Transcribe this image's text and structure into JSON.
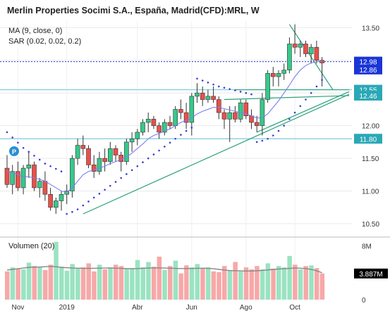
{
  "header": {
    "title": "Merlin Properties Socimi S.A., España, Madrid(CFD):MRL, W",
    "ma_label": "MA (9, close, 0)",
    "sar_label": "SAR (0.02, 0.02, 0.2)",
    "volume_label": "Volumen (20)",
    "badge": "P"
  },
  "colors": {
    "up": "#35c98a",
    "down": "#e8504b",
    "ma": "#7b7ff0",
    "sar": "#3b3bd6",
    "trend": "#2aa07a",
    "hline": "#7ec9dd",
    "vol_up": "#9ae3c1",
    "vol_down": "#f7a8a8",
    "vol_ma": "#888888",
    "price_blue": "#1a35d6",
    "price_teal": "#2aa8b6",
    "badge": "#2a8fd3"
  },
  "chart_data": {
    "type": "candlestick",
    "price_axis": {
      "ticks": [
        "13.50",
        "13.00",
        "12.50",
        "12.00",
        "11.50",
        "11.00",
        "10.50"
      ],
      "values": [
        13.5,
        13.0,
        12.5,
        12.0,
        11.5,
        11.0,
        10.5
      ],
      "ylim": [
        10.35,
        13.6
      ]
    },
    "price_labels": [
      {
        "text": "12.98",
        "value": 12.98,
        "style": "blue"
      },
      {
        "text": "12.86",
        "value": 12.86,
        "style": "blue"
      },
      {
        "text": "12.55",
        "value": 12.55,
        "style": "teal"
      },
      {
        "text": "12.46",
        "value": 12.46,
        "style": "teal"
      },
      {
        "text": "11.80",
        "value": 11.8,
        "style": "teal"
      }
    ],
    "x_axis": {
      "labels": [
        "Nov",
        "2019",
        "Abr",
        "Jun",
        "Ago",
        "Oct"
      ],
      "label_bars": [
        2,
        11,
        24,
        34,
        44,
        53
      ]
    },
    "candles": [
      [
        11.35,
        11.55,
        11.05,
        11.1
      ],
      [
        11.1,
        11.4,
        10.95,
        11.3
      ],
      [
        11.3,
        11.45,
        11.0,
        11.05
      ],
      [
        11.05,
        11.4,
        10.95,
        11.35
      ],
      [
        11.35,
        11.6,
        11.2,
        11.4
      ],
      [
        11.4,
        11.45,
        11.0,
        11.05
      ],
      [
        11.05,
        11.2,
        10.9,
        11.15
      ],
      [
        11.15,
        11.3,
        10.85,
        10.95
      ],
      [
        10.95,
        11.05,
        10.7,
        10.75
      ],
      [
        10.75,
        10.9,
        10.65,
        10.85
      ],
      [
        10.85,
        11.0,
        10.7,
        10.95
      ],
      [
        10.95,
        11.1,
        10.8,
        11.0
      ],
      [
        11.0,
        11.55,
        10.9,
        11.5
      ],
      [
        11.5,
        11.8,
        11.4,
        11.7
      ],
      [
        11.7,
        11.85,
        11.55,
        11.65
      ],
      [
        11.65,
        11.7,
        11.35,
        11.4
      ],
      [
        11.4,
        11.55,
        11.2,
        11.3
      ],
      [
        11.3,
        11.6,
        11.25,
        11.5
      ],
      [
        11.5,
        11.65,
        11.3,
        11.45
      ],
      [
        11.45,
        11.75,
        11.4,
        11.65
      ],
      [
        11.65,
        11.7,
        11.45,
        11.55
      ],
      [
        11.55,
        11.6,
        11.3,
        11.45
      ],
      [
        11.45,
        11.8,
        11.4,
        11.75
      ],
      [
        11.75,
        11.9,
        11.6,
        11.8
      ],
      [
        11.8,
        11.95,
        11.7,
        11.9
      ],
      [
        11.9,
        12.1,
        11.85,
        12.05
      ],
      [
        12.05,
        12.2,
        11.9,
        12.1
      ],
      [
        12.1,
        12.15,
        11.95,
        12.0
      ],
      [
        12.0,
        12.05,
        11.8,
        11.9
      ],
      [
        11.9,
        12.1,
        11.85,
        12.05
      ],
      [
        12.05,
        12.15,
        11.95,
        12.0
      ],
      [
        12.0,
        12.3,
        11.95,
        12.25
      ],
      [
        12.25,
        12.4,
        12.1,
        12.2
      ],
      [
        12.2,
        12.35,
        11.95,
        12.05
      ],
      [
        12.05,
        12.5,
        11.85,
        12.45
      ],
      [
        12.45,
        12.65,
        12.35,
        12.5
      ],
      [
        12.5,
        12.6,
        12.3,
        12.4
      ],
      [
        12.4,
        12.55,
        12.35,
        12.45
      ],
      [
        12.45,
        12.6,
        12.35,
        12.4
      ],
      [
        12.4,
        12.45,
        12.1,
        12.2
      ],
      [
        12.2,
        12.25,
        11.95,
        12.1
      ],
      [
        12.1,
        12.3,
        11.75,
        12.2
      ],
      [
        12.2,
        12.3,
        12.05,
        12.1
      ],
      [
        12.1,
        12.4,
        12.05,
        12.35
      ],
      [
        12.35,
        12.4,
        12.1,
        12.15
      ],
      [
        12.15,
        12.25,
        11.95,
        12.05
      ],
      [
        12.05,
        12.15,
        11.9,
        12.0
      ],
      [
        12.0,
        12.5,
        11.85,
        12.4
      ],
      [
        12.4,
        12.85,
        12.35,
        12.8
      ],
      [
        12.8,
        12.9,
        12.6,
        12.75
      ],
      [
        12.75,
        12.85,
        12.6,
        12.8
      ],
      [
        12.8,
        12.95,
        12.7,
        12.85
      ],
      [
        12.85,
        13.35,
        12.8,
        13.25
      ],
      [
        13.25,
        13.55,
        13.1,
        13.2
      ],
      [
        13.2,
        13.3,
        13.05,
        13.25
      ],
      [
        13.25,
        13.3,
        13.05,
        13.1
      ],
      [
        13.1,
        13.25,
        12.95,
        13.2
      ],
      [
        13.2,
        13.3,
        12.95,
        13.0
      ],
      [
        13.0,
        13.05,
        12.6,
        12.96
      ]
    ],
    "ma": [
      11.3,
      11.28,
      11.25,
      11.22,
      11.22,
      11.2,
      11.18,
      11.15,
      11.1,
      11.05,
      11.0,
      10.98,
      11.05,
      11.15,
      11.25,
      11.3,
      11.32,
      11.35,
      11.38,
      11.42,
      11.45,
      11.48,
      11.52,
      11.58,
      11.65,
      11.72,
      11.8,
      11.85,
      11.88,
      11.92,
      11.95,
      12.0,
      12.05,
      12.08,
      12.12,
      12.18,
      12.22,
      12.25,
      12.28,
      12.28,
      12.26,
      12.24,
      12.22,
      12.2,
      12.18,
      12.15,
      12.12,
      12.12,
      12.18,
      12.28,
      12.38,
      12.5,
      12.62,
      12.75,
      12.85,
      12.92,
      12.96,
      12.98,
      12.99
    ],
    "sar": [
      11.9,
      11.82,
      11.74,
      11.66,
      11.6,
      11.54,
      11.48,
      11.42,
      11.38,
      11.34,
      11.3,
      10.65,
      10.68,
      10.72,
      10.78,
      10.84,
      10.9,
      10.96,
      11.02,
      11.08,
      11.14,
      11.2,
      11.26,
      11.32,
      11.38,
      11.44,
      11.5,
      11.56,
      11.62,
      11.68,
      11.74,
      11.8,
      11.86,
      11.92,
      11.97,
      12.72,
      12.69,
      12.66,
      12.63,
      12.6,
      12.58,
      12.56,
      12.54,
      12.52,
      12.5,
      12.48,
      11.75,
      11.77,
      11.8,
      11.85,
      11.92,
      12.0,
      12.1,
      12.2,
      12.3,
      12.4,
      12.5,
      12.6,
      12.7
    ],
    "trendlines": [
      {
        "from": [
          14,
          10.65
        ],
        "to": [
          63,
          12.48
        ]
      },
      {
        "from": [
          46,
          11.9
        ],
        "to": [
          63,
          12.52
        ]
      },
      {
        "from": [
          52,
          13.55
        ],
        "to": [
          60,
          12.55
        ]
      },
      {
        "from": [
          42,
          12.55
        ],
        "to": [
          63,
          12.55
        ]
      },
      {
        "from": [
          40,
          12.4
        ],
        "to": [
          63,
          12.46
        ]
      }
    ],
    "hlines": [
      12.55,
      11.8
    ],
    "dotted_hline": 12.98,
    "volume": {
      "axis_ticks": [
        "8M",
        "0"
      ],
      "axis_values": [
        8,
        0
      ],
      "ylim": [
        0,
        9
      ],
      "last_label": "3.887M",
      "last_value": 3.887,
      "bars": [
        4.2,
        4.8,
        4.6,
        4.5,
        5.5,
        5.0,
        4.8,
        4.4,
        5.2,
        8.6,
        4.9,
        4.3,
        5.3,
        4.6,
        4.8,
        5.4,
        4.2,
        5.2,
        4.5,
        4.8,
        5.2,
        5.0,
        4.6,
        4.7,
        5.9,
        4.8,
        5.6,
        4.9,
        6.4,
        4.4,
        5.0,
        5.8,
        3.9,
        5.1,
        4.8,
        5.3,
        4.6,
        4.8,
        4.2,
        4.1,
        5.0,
        4.4,
        5.6,
        4.2,
        4.8,
        4.5,
        5.0,
        4.5,
        5.4,
        4.6,
        5.0,
        4.8,
        6.5,
        5.2,
        4.5,
        5.0,
        5.1,
        4.7,
        3.9
      ],
      "ma": [
        4.4,
        4.5,
        4.6,
        4.7,
        4.8,
        4.85,
        4.85,
        4.9,
        4.95,
        4.9,
        4.8,
        4.75,
        4.7,
        4.68,
        4.66,
        4.65,
        4.66,
        4.68,
        4.7,
        4.7,
        4.68,
        4.65,
        4.62,
        4.6,
        4.62,
        4.66,
        4.7,
        4.72,
        4.72,
        4.7,
        4.68,
        4.65,
        4.62,
        4.62,
        4.64,
        4.66,
        4.68,
        4.66,
        4.6,
        4.5,
        4.4,
        4.32,
        4.3,
        4.28,
        4.26,
        4.26,
        4.3,
        4.35,
        4.42,
        4.5,
        4.56,
        4.6,
        4.65,
        4.7,
        4.68,
        4.62,
        4.5,
        4.3,
        4.0
      ]
    }
  }
}
